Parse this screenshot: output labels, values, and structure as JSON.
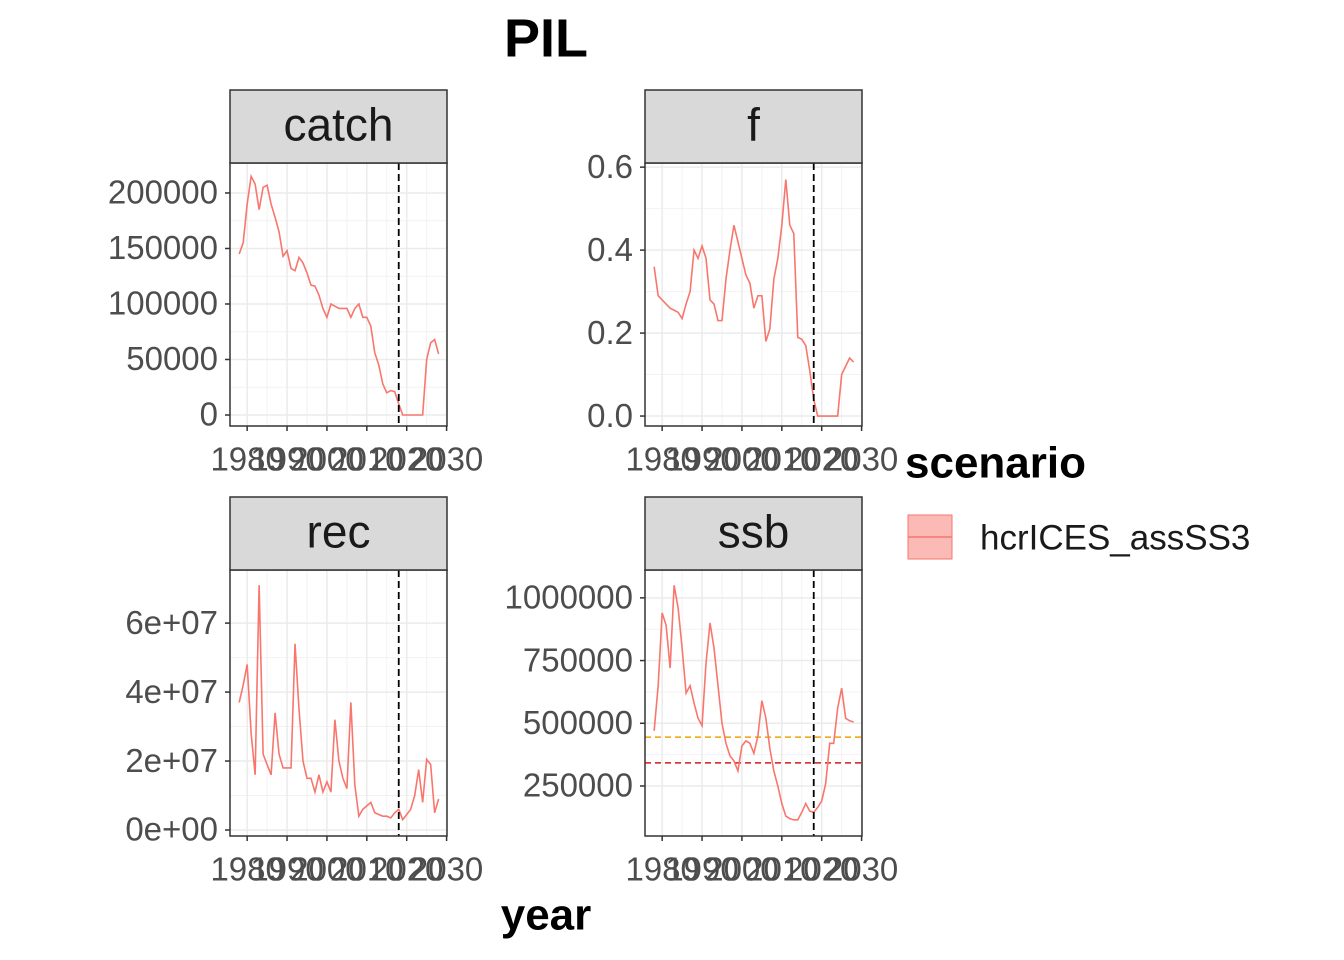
{
  "title": "PIL",
  "xlabel": "year",
  "legend_title": "scenario",
  "chart_data": [
    {
      "type": "line",
      "title": "catch",
      "x": [
        1978,
        1979,
        1980,
        1981,
        1982,
        1983,
        1984,
        1985,
        1986,
        1987,
        1988,
        1989,
        1990,
        1991,
        1992,
        1993,
        1994,
        1995,
        1996,
        1997,
        1998,
        1999,
        2000,
        2001,
        2002,
        2003,
        2004,
        2005,
        2006,
        2007,
        2008,
        2009,
        2010,
        2011,
        2012,
        2013,
        2014,
        2015,
        2016,
        2017,
        2018,
        2019,
        2020,
        2021,
        2022,
        2023,
        2024,
        2025,
        2026,
        2027,
        2028
      ],
      "series": [
        {
          "name": "hcrICES_assSS3",
          "color": "#F8766D",
          "values": [
            145000,
            155000,
            190000,
            215000,
            208000,
            185000,
            205000,
            207000,
            190000,
            178000,
            165000,
            143000,
            148000,
            132000,
            130000,
            142000,
            137000,
            128000,
            117000,
            116000,
            108000,
            96000,
            88000,
            100000,
            98000,
            96000,
            96000,
            96000,
            88000,
            96000,
            100000,
            88000,
            88000,
            80000,
            56000,
            45000,
            28000,
            20000,
            22000,
            21000,
            10000,
            0,
            0,
            0,
            0,
            0,
            0,
            50000,
            65000,
            68000,
            55000
          ]
        }
      ],
      "xlim": [
        1975.7,
        2030.1
      ],
      "xticks": [
        1980,
        1990,
        2000,
        2010,
        2020,
        2030
      ],
      "ylim": [
        -9900,
        227000
      ],
      "yticks": [
        0,
        50000,
        100000,
        150000,
        200000
      ],
      "vline": 2018
    },
    {
      "type": "line",
      "title": "f",
      "x": [
        1978,
        1979,
        1980,
        1981,
        1982,
        1983,
        1984,
        1985,
        1986,
        1987,
        1988,
        1989,
        1990,
        1991,
        1992,
        1993,
        1994,
        1995,
        1996,
        1997,
        1998,
        1999,
        2000,
        2001,
        2002,
        2003,
        2004,
        2005,
        2006,
        2007,
        2008,
        2009,
        2010,
        2011,
        2012,
        2013,
        2014,
        2015,
        2016,
        2017,
        2018,
        2019,
        2020,
        2021,
        2022,
        2023,
        2024,
        2025,
        2026,
        2027,
        2028
      ],
      "series": [
        {
          "color": "#F8766D",
          "values": [
            0.36,
            0.29,
            0.28,
            0.27,
            0.26,
            0.255,
            0.25,
            0.235,
            0.27,
            0.3,
            0.4,
            0.38,
            0.41,
            0.38,
            0.28,
            0.27,
            0.23,
            0.23,
            0.33,
            0.4,
            0.46,
            0.42,
            0.38,
            0.34,
            0.32,
            0.26,
            0.29,
            0.29,
            0.18,
            0.21,
            0.33,
            0.38,
            0.46,
            0.57,
            0.46,
            0.44,
            0.19,
            0.185,
            0.17,
            0.11,
            0.04,
            0,
            0,
            0,
            0,
            0,
            0,
            0.1,
            0.12,
            0.14,
            0.13
          ]
        }
      ],
      "xlim": [
        1975.7,
        2030.1
      ],
      "xticks": [
        1980,
        1990,
        2000,
        2010,
        2020,
        2030
      ],
      "ylim": [
        -0.024,
        0.61
      ],
      "yticks": [
        {
          "value": 0,
          "label": "0.0"
        },
        0.2,
        0.4,
        0.6
      ],
      "vline": 2018
    },
    {
      "type": "line",
      "title": "rec",
      "x": [
        1978,
        1979,
        1980,
        1981,
        1982,
        1983,
        1984,
        1985,
        1986,
        1987,
        1988,
        1989,
        1990,
        1991,
        1992,
        1993,
        1994,
        1995,
        1996,
        1997,
        1998,
        1999,
        2000,
        2001,
        2002,
        2003,
        2004,
        2005,
        2006,
        2007,
        2008,
        2009,
        2010,
        2011,
        2012,
        2013,
        2014,
        2015,
        2016,
        2017,
        2018,
        2019,
        2020,
        2021,
        2022,
        2023,
        2024,
        2025,
        2026,
        2027,
        2028
      ],
      "series": [
        {
          "color": "#F8766D",
          "values": [
            37000000,
            42000000,
            48000000,
            28000000,
            16000000,
            71000000,
            22000000,
            19000000,
            16000000,
            34000000,
            22000000,
            18000000,
            18000000,
            18000000,
            54000000,
            35000000,
            20000000,
            15000000,
            15000000,
            11000000,
            16000000,
            11000000,
            14000000,
            11000000,
            32000000,
            20000000,
            15000000,
            12000000,
            37000000,
            13000000,
            4000000,
            6000000,
            7000000,
            8000000,
            5000000,
            4500000,
            4000000,
            4000000,
            3500000,
            5000000,
            6000000,
            3000000,
            4500000,
            6000000,
            10000000,
            17500000,
            8000000,
            20500000,
            19000000,
            5000000,
            9000000
          ]
        }
      ],
      "xlim": [
        1975.7,
        2030.1
      ],
      "xticks": [
        1980,
        1990,
        2000,
        2010,
        2020,
        2030
      ],
      "ylim": [
        -1740000,
        75400000
      ],
      "yticks": [
        {
          "value": 0,
          "label": "0e+00"
        },
        {
          "value": 20000000,
          "label": "2e+07"
        },
        {
          "value": 40000000,
          "label": "4e+07"
        },
        {
          "value": 60000000,
          "label": "6e+07"
        }
      ],
      "vline": 2018
    },
    {
      "type": "line",
      "title": "ssb",
      "x": [
        1978,
        1979,
        1980,
        1981,
        1982,
        1983,
        1984,
        1985,
        1986,
        1987,
        1988,
        1989,
        1990,
        1991,
        1992,
        1993,
        1994,
        1995,
        1996,
        1997,
        1998,
        1999,
        2000,
        2001,
        2002,
        2003,
        2004,
        2005,
        2006,
        2007,
        2008,
        2009,
        2010,
        2011,
        2012,
        2013,
        2014,
        2015,
        2016,
        2017,
        2018,
        2019,
        2020,
        2021,
        2022,
        2023,
        2024,
        2025,
        2026,
        2027,
        2028
      ],
      "series": [
        {
          "color": "#F8766D",
          "values": [
            470000,
            650000,
            940000,
            890000,
            720000,
            1050000,
            960000,
            800000,
            620000,
            650000,
            580000,
            520000,
            490000,
            740000,
            900000,
            800000,
            650000,
            500000,
            420000,
            370000,
            350000,
            310000,
            410000,
            430000,
            420000,
            380000,
            450000,
            590000,
            520000,
            400000,
            310000,
            250000,
            180000,
            130000,
            120000,
            115000,
            115000,
            145000,
            180000,
            150000,
            145000,
            165000,
            190000,
            260000,
            420000,
            420000,
            560000,
            640000,
            520000,
            510000,
            505000
          ]
        }
      ],
      "xlim": [
        1975.7,
        2030.1
      ],
      "xticks": [
        1980,
        1990,
        2000,
        2010,
        2020,
        2030
      ],
      "ylim": [
        50600,
        1111000
      ],
      "yticks": [
        250000,
        500000,
        750000,
        1000000
      ],
      "vline": 2018,
      "hlines": [
        {
          "value": 445000,
          "color": "#f0a000"
        },
        {
          "value": 342000,
          "color": "#d7191c"
        }
      ]
    }
  ]
}
